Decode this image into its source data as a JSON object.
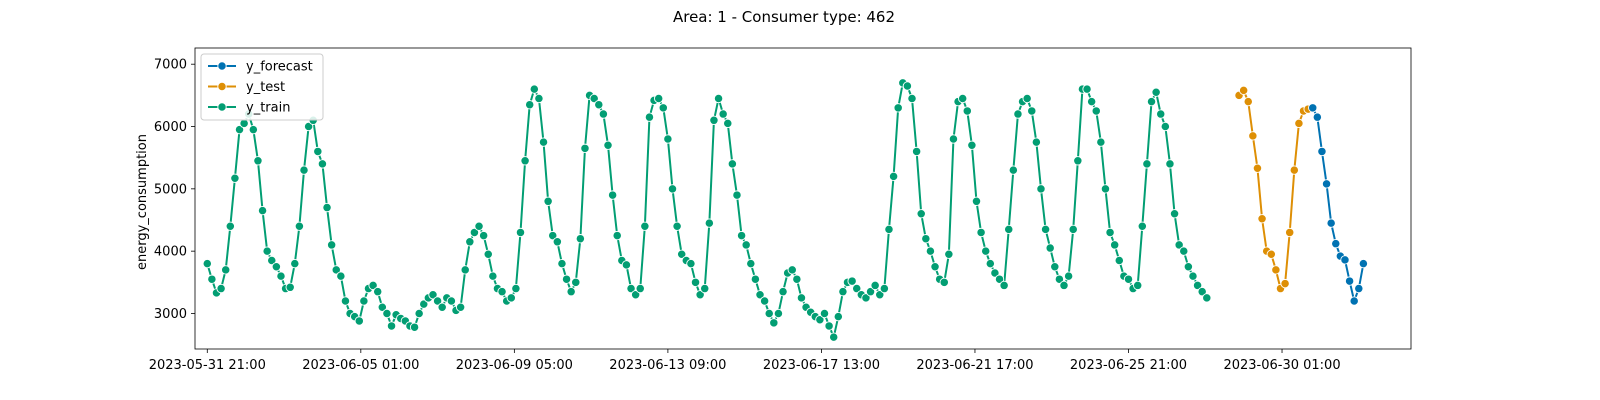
{
  "chart_data": {
    "type": "line",
    "title": "Area: 1 - Consumer type: 462",
    "xlabel": "",
    "ylabel": "energy_consumption",
    "x_start": "2023-05-31 21:00",
    "x_step_hours": 3,
    "xlim": [
      "2023-05-31 13:00",
      "2023-07-03 13:00"
    ],
    "ylim": [
      2430,
      7260
    ],
    "xticks": [
      "2023-05-31 21:00",
      "2023-06-05 01:00",
      "2023-06-09 05:00",
      "2023-06-13 09:00",
      "2023-06-17 13:00",
      "2023-06-21 17:00",
      "2023-06-25 21:00",
      "2023-06-30 01:00"
    ],
    "yticks": [
      3000,
      4000,
      5000,
      6000,
      7000
    ],
    "legend_position": "top-left",
    "grid": false,
    "series": [
      {
        "name": "y_forecast",
        "color": "#0072b2",
        "start_index": 240,
        "values": [
          6300,
          6150,
          5600,
          5080,
          4450,
          4120,
          3920,
          3860,
          3520,
          3200,
          3400,
          3800
        ]
      },
      {
        "name": "y_test",
        "color": "#de8f05",
        "start_index": 224,
        "values": [
          6500,
          6580,
          6400,
          5850,
          5330,
          4520,
          4000,
          3950,
          3700,
          3400,
          3480,
          4300,
          5300,
          6050,
          6250,
          6280
        ]
      },
      {
        "name": "y_train",
        "color": "#029e73",
        "start_index": 0,
        "values": [
          3800,
          3550,
          3330,
          3400,
          3700,
          4400,
          5170,
          5950,
          6050,
          6200,
          5950,
          5450,
          4650,
          4000,
          3850,
          3750,
          3600,
          3400,
          3420,
          3800,
          4400,
          5300,
          6000,
          6100,
          5600,
          5400,
          4700,
          4100,
          3700,
          3600,
          3200,
          3000,
          2950,
          2880,
          3200,
          3400,
          3450,
          3350,
          3100,
          3000,
          2800,
          2980,
          2920,
          2880,
          2800,
          2780,
          3000,
          3150,
          3250,
          3300,
          3200,
          3100,
          3250,
          3200,
          3050,
          3100,
          3700,
          4150,
          4300,
          4400,
          4250,
          3950,
          3600,
          3400,
          3350,
          3200,
          3250,
          3400,
          4300,
          5450,
          6350,
          6600,
          6450,
          5750,
          4800,
          4250,
          4150,
          3800,
          3550,
          3350,
          3500,
          4200,
          5650,
          6500,
          6450,
          6350,
          6200,
          5700,
          4900,
          4250,
          3850,
          3780,
          3400,
          3300,
          3400,
          4400,
          6150,
          6420,
          6450,
          6300,
          5800,
          5000,
          4400,
          3950,
          3850,
          3800,
          3500,
          3300,
          3400,
          4450,
          6100,
          6450,
          6200,
          6050,
          5400,
          4900,
          4250,
          4100,
          3800,
          3550,
          3300,
          3200,
          3000,
          2850,
          3000,
          3350,
          3650,
          3700,
          3550,
          3250,
          3100,
          3020,
          2950,
          2900,
          3000,
          2800,
          2620,
          2950,
          3350,
          3500,
          3520,
          3400,
          3300,
          3250,
          3350,
          3450,
          3300,
          3400,
          4350,
          5200,
          6300,
          6700,
          6650,
          6450,
          5600,
          4600,
          4200,
          4000,
          3750,
          3550,
          3500,
          3950,
          5800,
          6400,
          6450,
          6250,
          5700,
          4800,
          4300,
          4000,
          3800,
          3650,
          3550,
          3450,
          4350,
          5300,
          6200,
          6400,
          6450,
          6250,
          5750,
          5000,
          4350,
          4050,
          3750,
          3550,
          3450,
          3600,
          4350,
          5450,
          6600,
          6600,
          6400,
          6250,
          5750,
          5000,
          4300,
          4100,
          3850,
          3600,
          3550,
          3400,
          3450,
          4400,
          5400,
          6400,
          6550,
          6200,
          6000,
          5400,
          4600,
          4100,
          4000,
          3750,
          3600,
          3450,
          3350,
          3250
        ]
      }
    ]
  }
}
